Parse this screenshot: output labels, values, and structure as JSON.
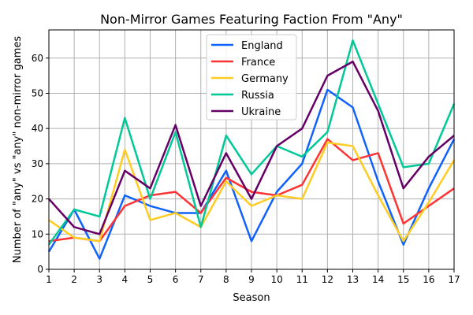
{
  "chart_data": {
    "type": "line",
    "title": "Non-Mirror Games Featuring Faction From \"Any\"",
    "xlabel": "Season",
    "ylabel": "Number of \"any\" vs \"any\" non-mirror games",
    "xlim": [
      1,
      17
    ],
    "ylim": [
      0,
      68
    ],
    "grid": true,
    "legend_position": "top-center",
    "x": [
      1,
      2,
      3,
      4,
      5,
      6,
      7,
      8,
      9,
      10,
      11,
      12,
      13,
      14,
      15,
      16,
      17
    ],
    "xticks": [
      "1",
      "2",
      "3",
      "4",
      "5",
      "6",
      "7",
      "8",
      "9",
      "10",
      "11",
      "12",
      "13",
      "14",
      "15",
      "16",
      "17"
    ],
    "yticks": [
      0,
      10,
      20,
      30,
      40,
      50,
      60
    ],
    "series": [
      {
        "name": "England",
        "color": "#0f62fe",
        "values": [
          5,
          17,
          3,
          21,
          18,
          16,
          16,
          28,
          8,
          22,
          30,
          51,
          46,
          25,
          7,
          23,
          37
        ]
      },
      {
        "name": "France",
        "color": "#ff3333",
        "values": [
          8,
          9,
          8,
          18,
          21,
          22,
          16,
          26,
          22,
          21,
          24,
          37,
          31,
          33,
          13,
          18,
          23
        ]
      },
      {
        "name": "Germany",
        "color": "#ffcc22",
        "values": [
          14,
          9,
          8,
          34,
          14,
          16,
          12,
          25,
          18,
          21,
          20,
          36,
          35,
          21,
          8,
          19,
          31
        ]
      },
      {
        "name": "Russia",
        "color": "#00c896",
        "values": [
          7,
          17,
          15,
          43,
          20,
          39,
          12,
          38,
          27,
          35,
          32,
          39,
          65,
          47,
          29,
          30,
          47
        ]
      },
      {
        "name": "Ukraine",
        "color": "#660066",
        "values": [
          20,
          12,
          10,
          28,
          23,
          41,
          18,
          33,
          20,
          35,
          40,
          55,
          59,
          45,
          23,
          32,
          38
        ]
      }
    ]
  }
}
